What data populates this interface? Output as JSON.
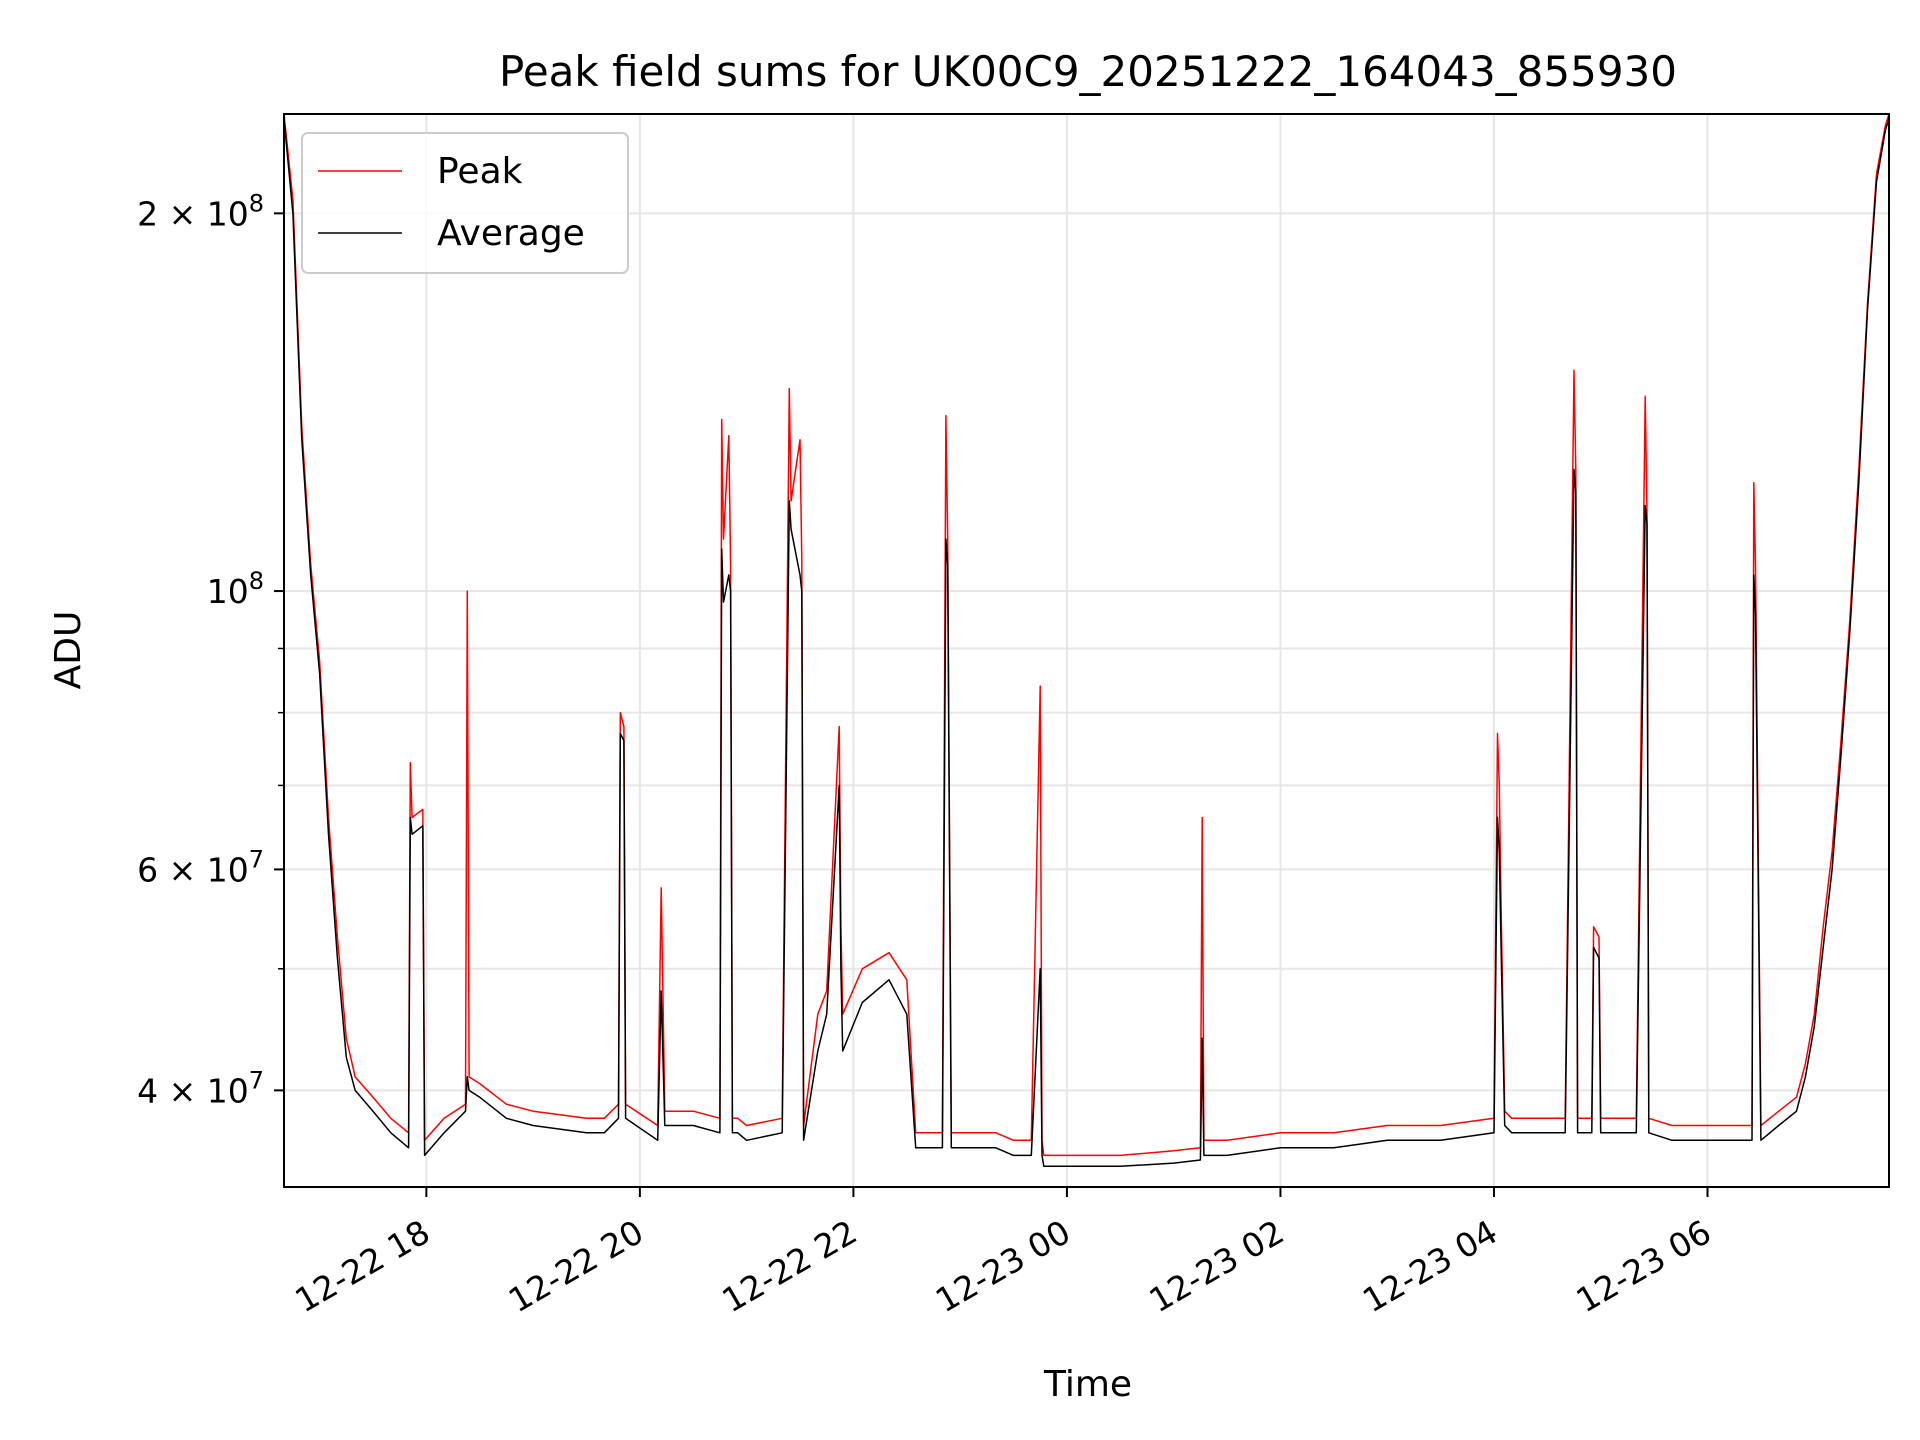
{
  "chart_data": {
    "type": "line",
    "title": "Peak field sums for UK00C9_20251222_164043_855930",
    "xlabel": "Time",
    "ylabel": "ADU",
    "yscale": "log",
    "ylim": [
      33500000,
      240000000
    ],
    "xlim": [
      "2025-12-22 16:40",
      "2025-12-23 07:42"
    ],
    "grid": true,
    "legend_position": "upper-left",
    "xticks": [
      {
        "value": "2025-12-22 18:00",
        "label": "12-22 18"
      },
      {
        "value": "2025-12-22 20:00",
        "label": "12-22 20"
      },
      {
        "value": "2025-12-22 22:00",
        "label": "12-22 22"
      },
      {
        "value": "2025-12-23 00:00",
        "label": "12-23 00"
      },
      {
        "value": "2025-12-23 02:00",
        "label": "12-23 02"
      },
      {
        "value": "2025-12-23 04:00",
        "label": "12-23 04"
      },
      {
        "value": "2025-12-23 06:00",
        "label": "12-23 06"
      }
    ],
    "yticks": [
      {
        "value": 40000000,
        "mant": "4",
        "exp": "7"
      },
      {
        "value": 60000000,
        "mant": "6",
        "exp": "7"
      },
      {
        "value": 100000000,
        "mant": "",
        "exp": "8"
      },
      {
        "value": 200000000,
        "mant": "2",
        "exp": "8"
      }
    ],
    "minor_yticks": [
      50000000,
      70000000,
      80000000,
      90000000
    ],
    "series": [
      {
        "name": "Peak",
        "color": "#ff0000",
        "x": [
          "2025-12-22 16:40",
          "2025-12-22 16:45",
          "2025-12-22 16:50",
          "2025-12-22 16:55",
          "2025-12-22 17:00",
          "2025-12-22 17:05",
          "2025-12-22 17:10",
          "2025-12-22 17:15",
          "2025-12-22 17:20",
          "2025-12-22 17:30",
          "2025-12-22 17:40",
          "2025-12-22 17:50",
          "2025-12-22 17:51",
          "2025-12-22 17:52",
          "2025-12-22 17:58",
          "2025-12-22 17:59",
          "2025-12-22 18:10",
          "2025-12-22 18:22",
          "2025-12-22 18:23",
          "2025-12-22 18:24",
          "2025-12-22 18:30",
          "2025-12-22 18:45",
          "2025-12-22 19:00",
          "2025-12-22 19:30",
          "2025-12-22 19:40",
          "2025-12-22 19:48",
          "2025-12-22 19:49",
          "2025-12-22 19:51",
          "2025-12-22 19:52",
          "2025-12-22 20:10",
          "2025-12-22 20:12",
          "2025-12-22 20:14",
          "2025-12-22 20:30",
          "2025-12-22 20:45",
          "2025-12-22 20:46",
          "2025-12-22 20:47",
          "2025-12-22 20:50",
          "2025-12-22 20:51",
          "2025-12-22 20:52",
          "2025-12-22 20:55",
          "2025-12-22 21:00",
          "2025-12-22 21:20",
          "2025-12-22 21:24",
          "2025-12-22 21:25",
          "2025-12-22 21:30",
          "2025-12-22 21:31",
          "2025-12-22 21:32",
          "2025-12-22 21:40",
          "2025-12-22 21:45",
          "2025-12-22 21:52",
          "2025-12-22 21:53",
          "2025-12-22 21:54",
          "2025-12-22 22:05",
          "2025-12-22 22:20",
          "2025-12-22 22:30",
          "2025-12-22 22:35",
          "2025-12-22 22:36",
          "2025-12-22 22:50",
          "2025-12-22 22:52",
          "2025-12-22 22:53",
          "2025-12-22 22:55",
          "2025-12-22 23:10",
          "2025-12-22 23:20",
          "2025-12-22 23:30",
          "2025-12-22 23:40",
          "2025-12-22 23:45",
          "2025-12-22 23:46",
          "2025-12-22 23:47",
          "2025-12-22 23:55",
          "2025-12-23 00:30",
          "2025-12-23 01:00",
          "2025-12-23 01:15",
          "2025-12-23 01:16",
          "2025-12-23 01:17",
          "2025-12-23 01:30",
          "2025-12-23 02:00",
          "2025-12-23 02:30",
          "2025-12-23 03:00",
          "2025-12-23 03:30",
          "2025-12-23 04:00",
          "2025-12-23 04:02",
          "2025-12-23 04:03",
          "2025-12-23 04:04",
          "2025-12-23 04:06",
          "2025-12-23 04:10",
          "2025-12-23 04:40",
          "2025-12-23 04:45",
          "2025-12-23 04:46",
          "2025-12-23 04:47",
          "2025-12-23 04:55",
          "2025-12-23 04:56",
          "2025-12-23 04:59",
          "2025-12-23 05:00",
          "2025-12-23 05:20",
          "2025-12-23 05:25",
          "2025-12-23 05:26",
          "2025-12-23 05:27",
          "2025-12-23 05:40",
          "2025-12-23 06:20",
          "2025-12-23 06:25",
          "2025-12-23 06:26",
          "2025-12-23 06:27",
          "2025-12-23 06:30",
          "2025-12-23 06:40",
          "2025-12-23 06:50",
          "2025-12-23 06:55",
          "2025-12-23 07:00",
          "2025-12-23 07:05",
          "2025-12-23 07:10",
          "2025-12-23 07:15",
          "2025-12-23 07:20",
          "2025-12-23 07:25",
          "2025-12-23 07:30",
          "2025-12-23 07:35",
          "2025-12-23 07:40",
          "2025-12-23 07:42"
        ],
        "y": [
          240000000,
          205000000,
          135000000,
          105000000,
          88000000,
          66000000,
          53000000,
          44000000,
          41000000,
          39500000,
          38000000,
          37000000,
          73000000,
          66000000,
          67000000,
          36500000,
          38000000,
          39000000,
          100000000,
          41000000,
          40500000,
          39000000,
          38500000,
          38000000,
          38000000,
          39000000,
          80000000,
          78000000,
          39000000,
          37500000,
          58000000,
          38500000,
          38500000,
          38000000,
          137000000,
          110000000,
          133000000,
          105000000,
          38000000,
          38000000,
          37500000,
          38000000,
          145000000,
          118000000,
          132000000,
          106000000,
          37500000,
          46000000,
          48000000,
          78000000,
          54000000,
          46000000,
          50000000,
          51500000,
          49000000,
          37000000,
          37000000,
          37000000,
          138000000,
          110000000,
          37000000,
          37000000,
          37000000,
          36500000,
          36500000,
          84000000,
          36500000,
          35500000,
          35500000,
          35500000,
          35800000,
          36000000,
          66000000,
          36500000,
          36500000,
          37000000,
          37000000,
          37500000,
          37500000,
          38000000,
          77000000,
          70000000,
          56000000,
          38500000,
          38000000,
          38000000,
          150000000,
          125000000,
          38000000,
          38000000,
          54000000,
          53000000,
          38000000,
          38000000,
          143000000,
          115000000,
          38000000,
          37500000,
          37500000,
          37500000,
          122000000,
          105000000,
          37500000,
          38500000,
          39500000,
          42000000,
          46000000,
          54000000,
          62000000,
          76000000,
          95000000,
          125000000,
          170000000,
          215000000,
          235000000,
          240000000
        ]
      },
      {
        "name": "Average",
        "color": "#000000",
        "x": [
          "2025-12-22 16:40",
          "2025-12-22 16:45",
          "2025-12-22 16:50",
          "2025-12-22 16:55",
          "2025-12-22 17:00",
          "2025-12-22 17:05",
          "2025-12-22 17:10",
          "2025-12-22 17:15",
          "2025-12-22 17:20",
          "2025-12-22 17:30",
          "2025-12-22 17:40",
          "2025-12-22 17:50",
          "2025-12-22 17:51",
          "2025-12-22 17:52",
          "2025-12-22 17:58",
          "2025-12-22 17:59",
          "2025-12-22 18:10",
          "2025-12-22 18:22",
          "2025-12-22 18:23",
          "2025-12-22 18:24",
          "2025-12-22 18:30",
          "2025-12-22 18:45",
          "2025-12-22 19:00",
          "2025-12-22 19:30",
          "2025-12-22 19:40",
          "2025-12-22 19:48",
          "2025-12-22 19:49",
          "2025-12-22 19:51",
          "2025-12-22 19:52",
          "2025-12-22 20:10",
          "2025-12-22 20:12",
          "2025-12-22 20:14",
          "2025-12-22 20:30",
          "2025-12-22 20:45",
          "2025-12-22 20:46",
          "2025-12-22 20:47",
          "2025-12-22 20:50",
          "2025-12-22 20:51",
          "2025-12-22 20:52",
          "2025-12-22 20:55",
          "2025-12-22 21:00",
          "2025-12-22 21:20",
          "2025-12-22 21:24",
          "2025-12-22 21:25",
          "2025-12-22 21:30",
          "2025-12-22 21:31",
          "2025-12-22 21:32",
          "2025-12-22 21:40",
          "2025-12-22 21:45",
          "2025-12-22 21:52",
          "2025-12-22 21:53",
          "2025-12-22 21:54",
          "2025-12-22 22:05",
          "2025-12-22 22:20",
          "2025-12-22 22:30",
          "2025-12-22 22:35",
          "2025-12-22 22:36",
          "2025-12-22 22:50",
          "2025-12-22 22:52",
          "2025-12-22 22:53",
          "2025-12-22 22:55",
          "2025-12-22 23:10",
          "2025-12-22 23:20",
          "2025-12-22 23:30",
          "2025-12-22 23:40",
          "2025-12-22 23:45",
          "2025-12-22 23:46",
          "2025-12-22 23:47",
          "2025-12-22 23:55",
          "2025-12-23 00:30",
          "2025-12-23 01:00",
          "2025-12-23 01:15",
          "2025-12-23 01:16",
          "2025-12-23 01:17",
          "2025-12-23 01:30",
          "2025-12-23 02:00",
          "2025-12-23 02:30",
          "2025-12-23 03:00",
          "2025-12-23 03:30",
          "2025-12-23 04:00",
          "2025-12-23 04:02",
          "2025-12-23 04:03",
          "2025-12-23 04:04",
          "2025-12-23 04:06",
          "2025-12-23 04:10",
          "2025-12-23 04:40",
          "2025-12-23 04:45",
          "2025-12-23 04:46",
          "2025-12-23 04:47",
          "2025-12-23 04:55",
          "2025-12-23 04:56",
          "2025-12-23 04:59",
          "2025-12-23 05:00",
          "2025-12-23 05:20",
          "2025-12-23 05:25",
          "2025-12-23 05:26",
          "2025-12-23 05:27",
          "2025-12-23 05:40",
          "2025-12-23 06:20",
          "2025-12-23 06:25",
          "2025-12-23 06:26",
          "2025-12-23 06:27",
          "2025-12-23 06:30",
          "2025-12-23 06:40",
          "2025-12-23 06:50",
          "2025-12-23 06:55",
          "2025-12-23 07:00",
          "2025-12-23 07:05",
          "2025-12-23 07:10",
          "2025-12-23 07:15",
          "2025-12-23 07:20",
          "2025-12-23 07:25",
          "2025-12-23 07:30",
          "2025-12-23 07:35",
          "2025-12-23 07:40",
          "2025-12-23 07:42"
        ],
        "y": [
          238000000,
          200000000,
          132000000,
          103000000,
          86000000,
          64000000,
          51000000,
          42500000,
          40000000,
          38500000,
          37000000,
          36000000,
          66000000,
          64000000,
          65000000,
          35500000,
          37000000,
          38500000,
          41000000,
          40000000,
          39500000,
          38000000,
          37500000,
          37000000,
          37000000,
          38000000,
          77000000,
          76000000,
          38000000,
          36500000,
          48000000,
          37500000,
          37500000,
          37000000,
          108000000,
          98000000,
          103000000,
          100000000,
          37000000,
          37000000,
          36500000,
          37000000,
          118000000,
          112000000,
          103000000,
          100000000,
          36500000,
          43000000,
          46000000,
          70000000,
          50000000,
          43000000,
          47000000,
          49000000,
          46000000,
          36000000,
          36000000,
          36000000,
          110000000,
          105000000,
          36000000,
          36000000,
          36000000,
          35500000,
          35500000,
          50000000,
          35500000,
          34800000,
          34800000,
          34800000,
          35000000,
          35200000,
          44000000,
          35500000,
          35500000,
          36000000,
          36000000,
          36500000,
          36500000,
          37000000,
          66000000,
          62000000,
          52000000,
          37500000,
          37000000,
          37000000,
          125000000,
          120000000,
          37000000,
          37000000,
          52000000,
          51000000,
          37000000,
          37000000,
          117000000,
          113000000,
          37000000,
          36500000,
          36500000,
          36500000,
          103000000,
          96000000,
          36500000,
          37500000,
          38500000,
          41000000,
          45000000,
          52000000,
          60000000,
          74000000,
          93000000,
          122000000,
          168000000,
          212000000,
          233000000,
          238000000
        ]
      }
    ]
  }
}
